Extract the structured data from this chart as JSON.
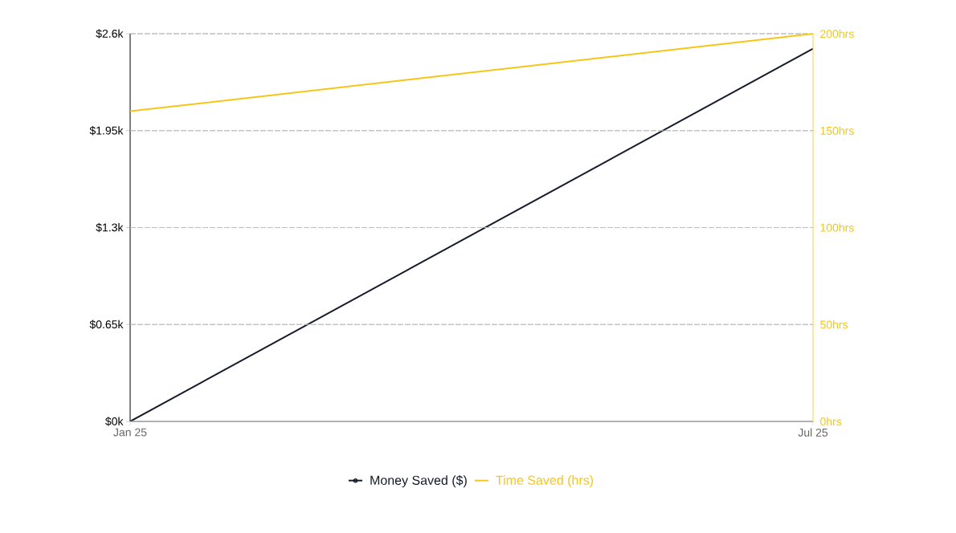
{
  "chart_data": {
    "type": "line",
    "categories": [
      "Jan 25",
      "Jul 25"
    ],
    "series": [
      {
        "name": "Money Saved ($)",
        "color": "#151b2b",
        "values": [
          0,
          2500
        ]
      },
      {
        "name": "Time Saved (hrs)",
        "color": "#f5c518",
        "values": [
          160,
          200
        ],
        "axis": "y2"
      }
    ],
    "ylim": [
      0,
      2600
    ],
    "yticks": [
      {
        "value": 0,
        "label": "$0k"
      },
      {
        "value": 650,
        "label": "$0.65k"
      },
      {
        "value": 1300,
        "label": "$1.3k"
      },
      {
        "value": 1950,
        "label": "$1.95k"
      },
      {
        "value": 2600,
        "label": "$2.6k"
      }
    ],
    "y2lim": [
      0,
      200
    ],
    "y2ticks": [
      {
        "value": 0,
        "label": "0hrs"
      },
      {
        "value": 50,
        "label": "50hrs"
      },
      {
        "value": 100,
        "label": "100hrs"
      },
      {
        "value": 150,
        "label": "150hrs"
      },
      {
        "value": 200,
        "label": "200hrs"
      }
    ],
    "grid": "y",
    "legend": "bottom"
  }
}
